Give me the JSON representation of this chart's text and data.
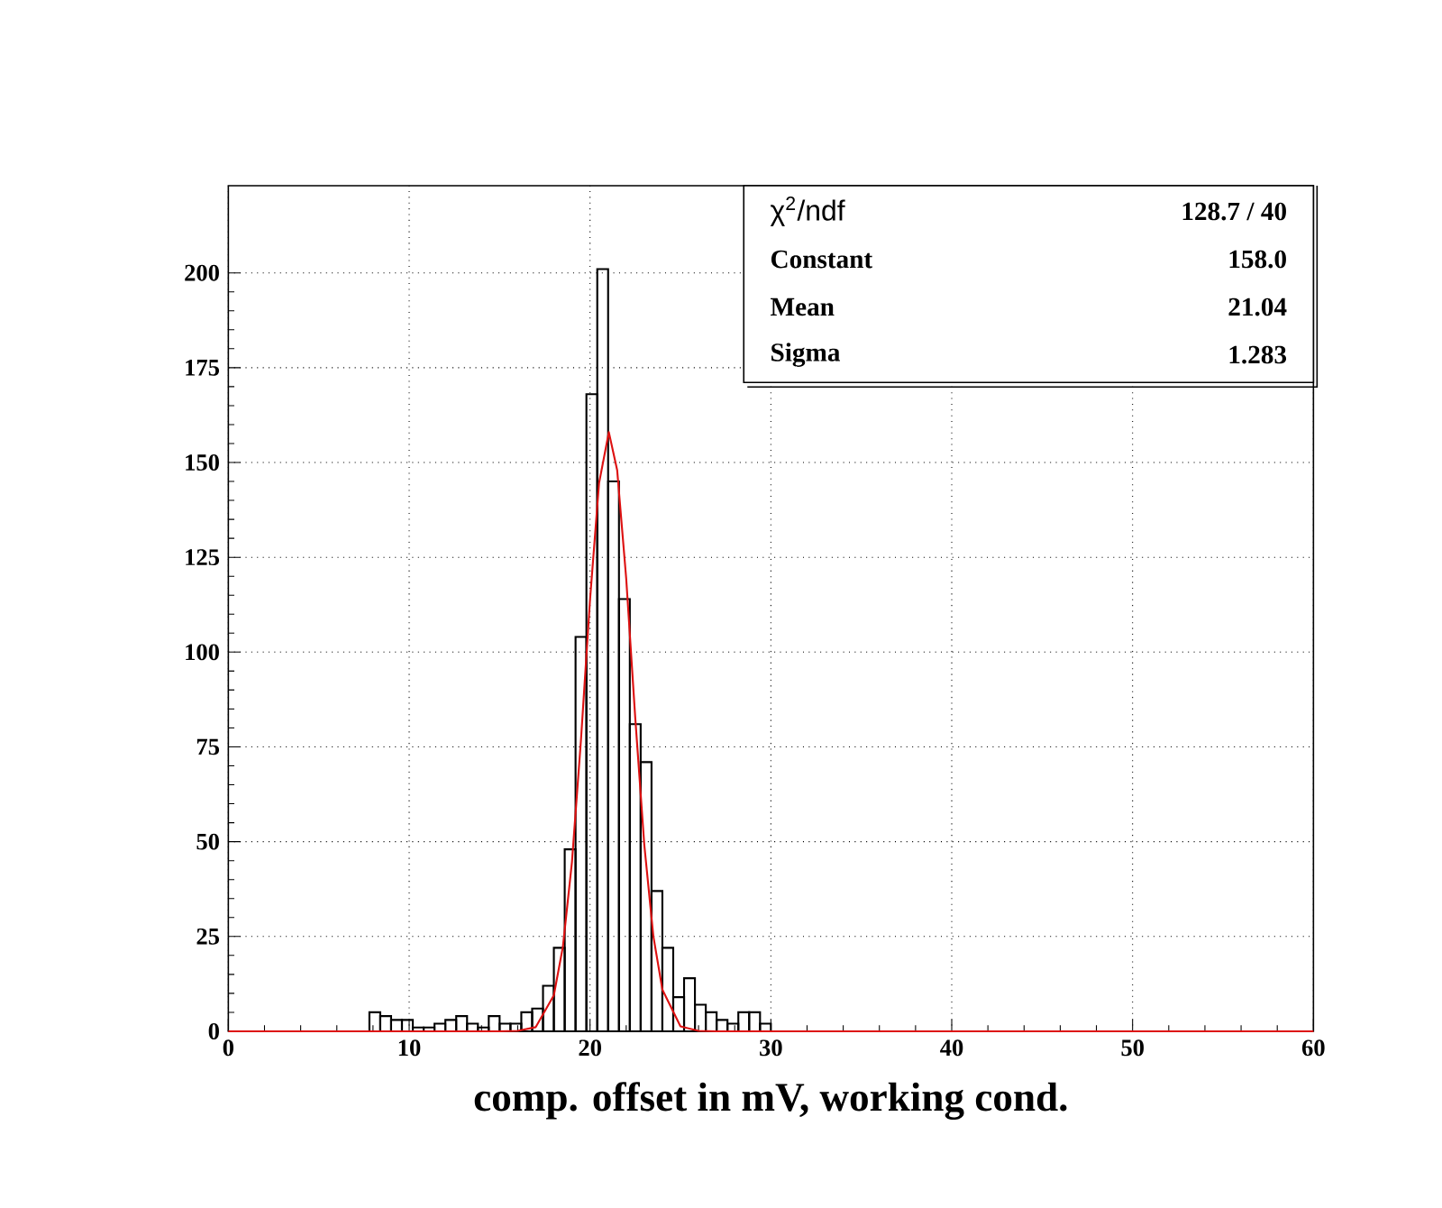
{
  "chart_data": {
    "type": "histogram",
    "xlabel": "comp. offset in mV, working cond.",
    "bins": [
      7.8,
      8.4,
      9.0,
      9.6,
      10.2,
      10.8,
      11.4,
      12.0,
      12.6,
      13.2,
      13.8,
      14.4,
      15.0,
      15.6,
      16.2,
      16.8,
      17.4,
      18.0,
      18.6,
      19.2,
      19.8,
      20.4,
      21.0,
      21.6,
      22.2,
      22.8,
      23.4,
      24.0,
      24.6,
      25.2,
      25.8,
      26.4,
      27.0,
      27.6,
      28.2,
      28.8,
      29.4,
      30.0
    ],
    "values": [
      5,
      4,
      3,
      3,
      1,
      1,
      2,
      3,
      4,
      2,
      1,
      4,
      2,
      2,
      5,
      6,
      12,
      22,
      48,
      104,
      168,
      201,
      145,
      114,
      81,
      71,
      37,
      22,
      9,
      14,
      7,
      5,
      3,
      2,
      5,
      5,
      2
    ],
    "color": "#000000",
    "series": [
      {
        "type": "line",
        "color": "#dd1111",
        "x": [
          0,
          15,
          16,
          17,
          18,
          18.5,
          19,
          19.5,
          20,
          20.5,
          21.04,
          21.5,
          22,
          22.5,
          23,
          23.5,
          24,
          25,
          26,
          27,
          60
        ],
        "values": [
          0,
          0,
          0.1,
          1.1,
          9.5,
          22.3,
          44.6,
          76.9,
          113.8,
          144.6,
          158,
          148,
          119.4,
          82.7,
          49.2,
          25.1,
          11,
          1.3,
          0.1,
          0,
          0
        ]
      }
    ],
    "xlim": [
      0,
      60
    ],
    "ylim": [
      0,
      223
    ],
    "xticks": [
      0,
      10,
      20,
      30,
      40,
      50,
      60
    ],
    "yticks": [
      0,
      25,
      50,
      75,
      100,
      125,
      150,
      175,
      200
    ],
    "grid": true,
    "annotations": [
      "χ$^{2}$/ndf",
      "128.7  /  40",
      "Constant",
      "158.0",
      "Mean",
      "21.04",
      "Sigma",
      "1.283"
    ]
  }
}
